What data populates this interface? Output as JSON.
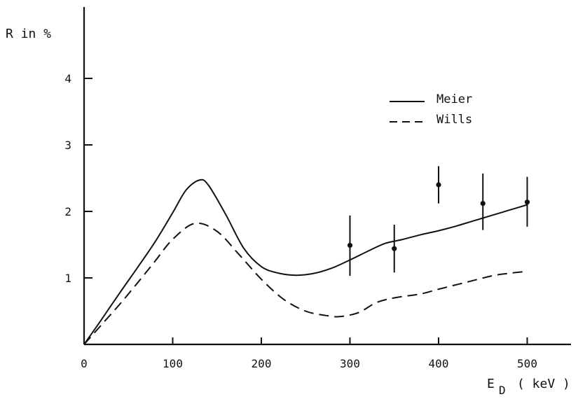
{
  "chart_data": {
    "type": "line",
    "ylabel": "R in %",
    "xlabel": {
      "main": "E",
      "subscript": "D",
      "unit": "( keV )"
    },
    "xlim": [
      0,
      550
    ],
    "ylim": [
      0,
      5
    ],
    "xticks": [
      0,
      100,
      200,
      300,
      400,
      500
    ],
    "yticks": [
      1,
      2,
      3,
      4
    ],
    "grid": false,
    "legend_position": "upper-right",
    "series": [
      {
        "name": "Meier",
        "style": "solid",
        "x": [
          0,
          20,
          40,
          60,
          80,
          100,
          115,
          130,
          140,
          160,
          180,
          200,
          220,
          240,
          260,
          280,
          300,
          320,
          340,
          360,
          380,
          400,
          420,
          440,
          460,
          480,
          500
        ],
        "y": [
          0,
          0.38,
          0.77,
          1.15,
          1.54,
          1.98,
          2.32,
          2.47,
          2.4,
          1.95,
          1.45,
          1.17,
          1.07,
          1.04,
          1.07,
          1.15,
          1.27,
          1.4,
          1.52,
          1.58,
          1.65,
          1.71,
          1.78,
          1.86,
          1.94,
          2.02,
          2.1
        ]
      },
      {
        "name": "Wills",
        "style": "dashed",
        "x": [
          0,
          20,
          40,
          60,
          80,
          100,
          125,
          150,
          175,
          200,
          225,
          250,
          275,
          290,
          310,
          330,
          350,
          380,
          400,
          430,
          460,
          480,
          500
        ],
        "y": [
          0,
          0.3,
          0.6,
          0.92,
          1.25,
          1.58,
          1.82,
          1.7,
          1.35,
          0.98,
          0.68,
          0.5,
          0.43,
          0.42,
          0.48,
          0.63,
          0.7,
          0.76,
          0.83,
          0.93,
          1.03,
          1.07,
          1.1
        ]
      },
      {
        "name": "",
        "style": "points-with-error-bars",
        "x": [
          300,
          350,
          400,
          450,
          500
        ],
        "y": [
          1.49,
          1.44,
          2.4,
          2.12,
          2.14
        ],
        "err_low": [
          1.03,
          1.08,
          2.12,
          1.72,
          1.77
        ],
        "err_high": [
          1.94,
          1.8,
          2.68,
          2.57,
          2.52
        ]
      }
    ],
    "legend": [
      {
        "label": "Meier",
        "style": "solid"
      },
      {
        "label": "Wills",
        "style": "dashed"
      }
    ]
  }
}
